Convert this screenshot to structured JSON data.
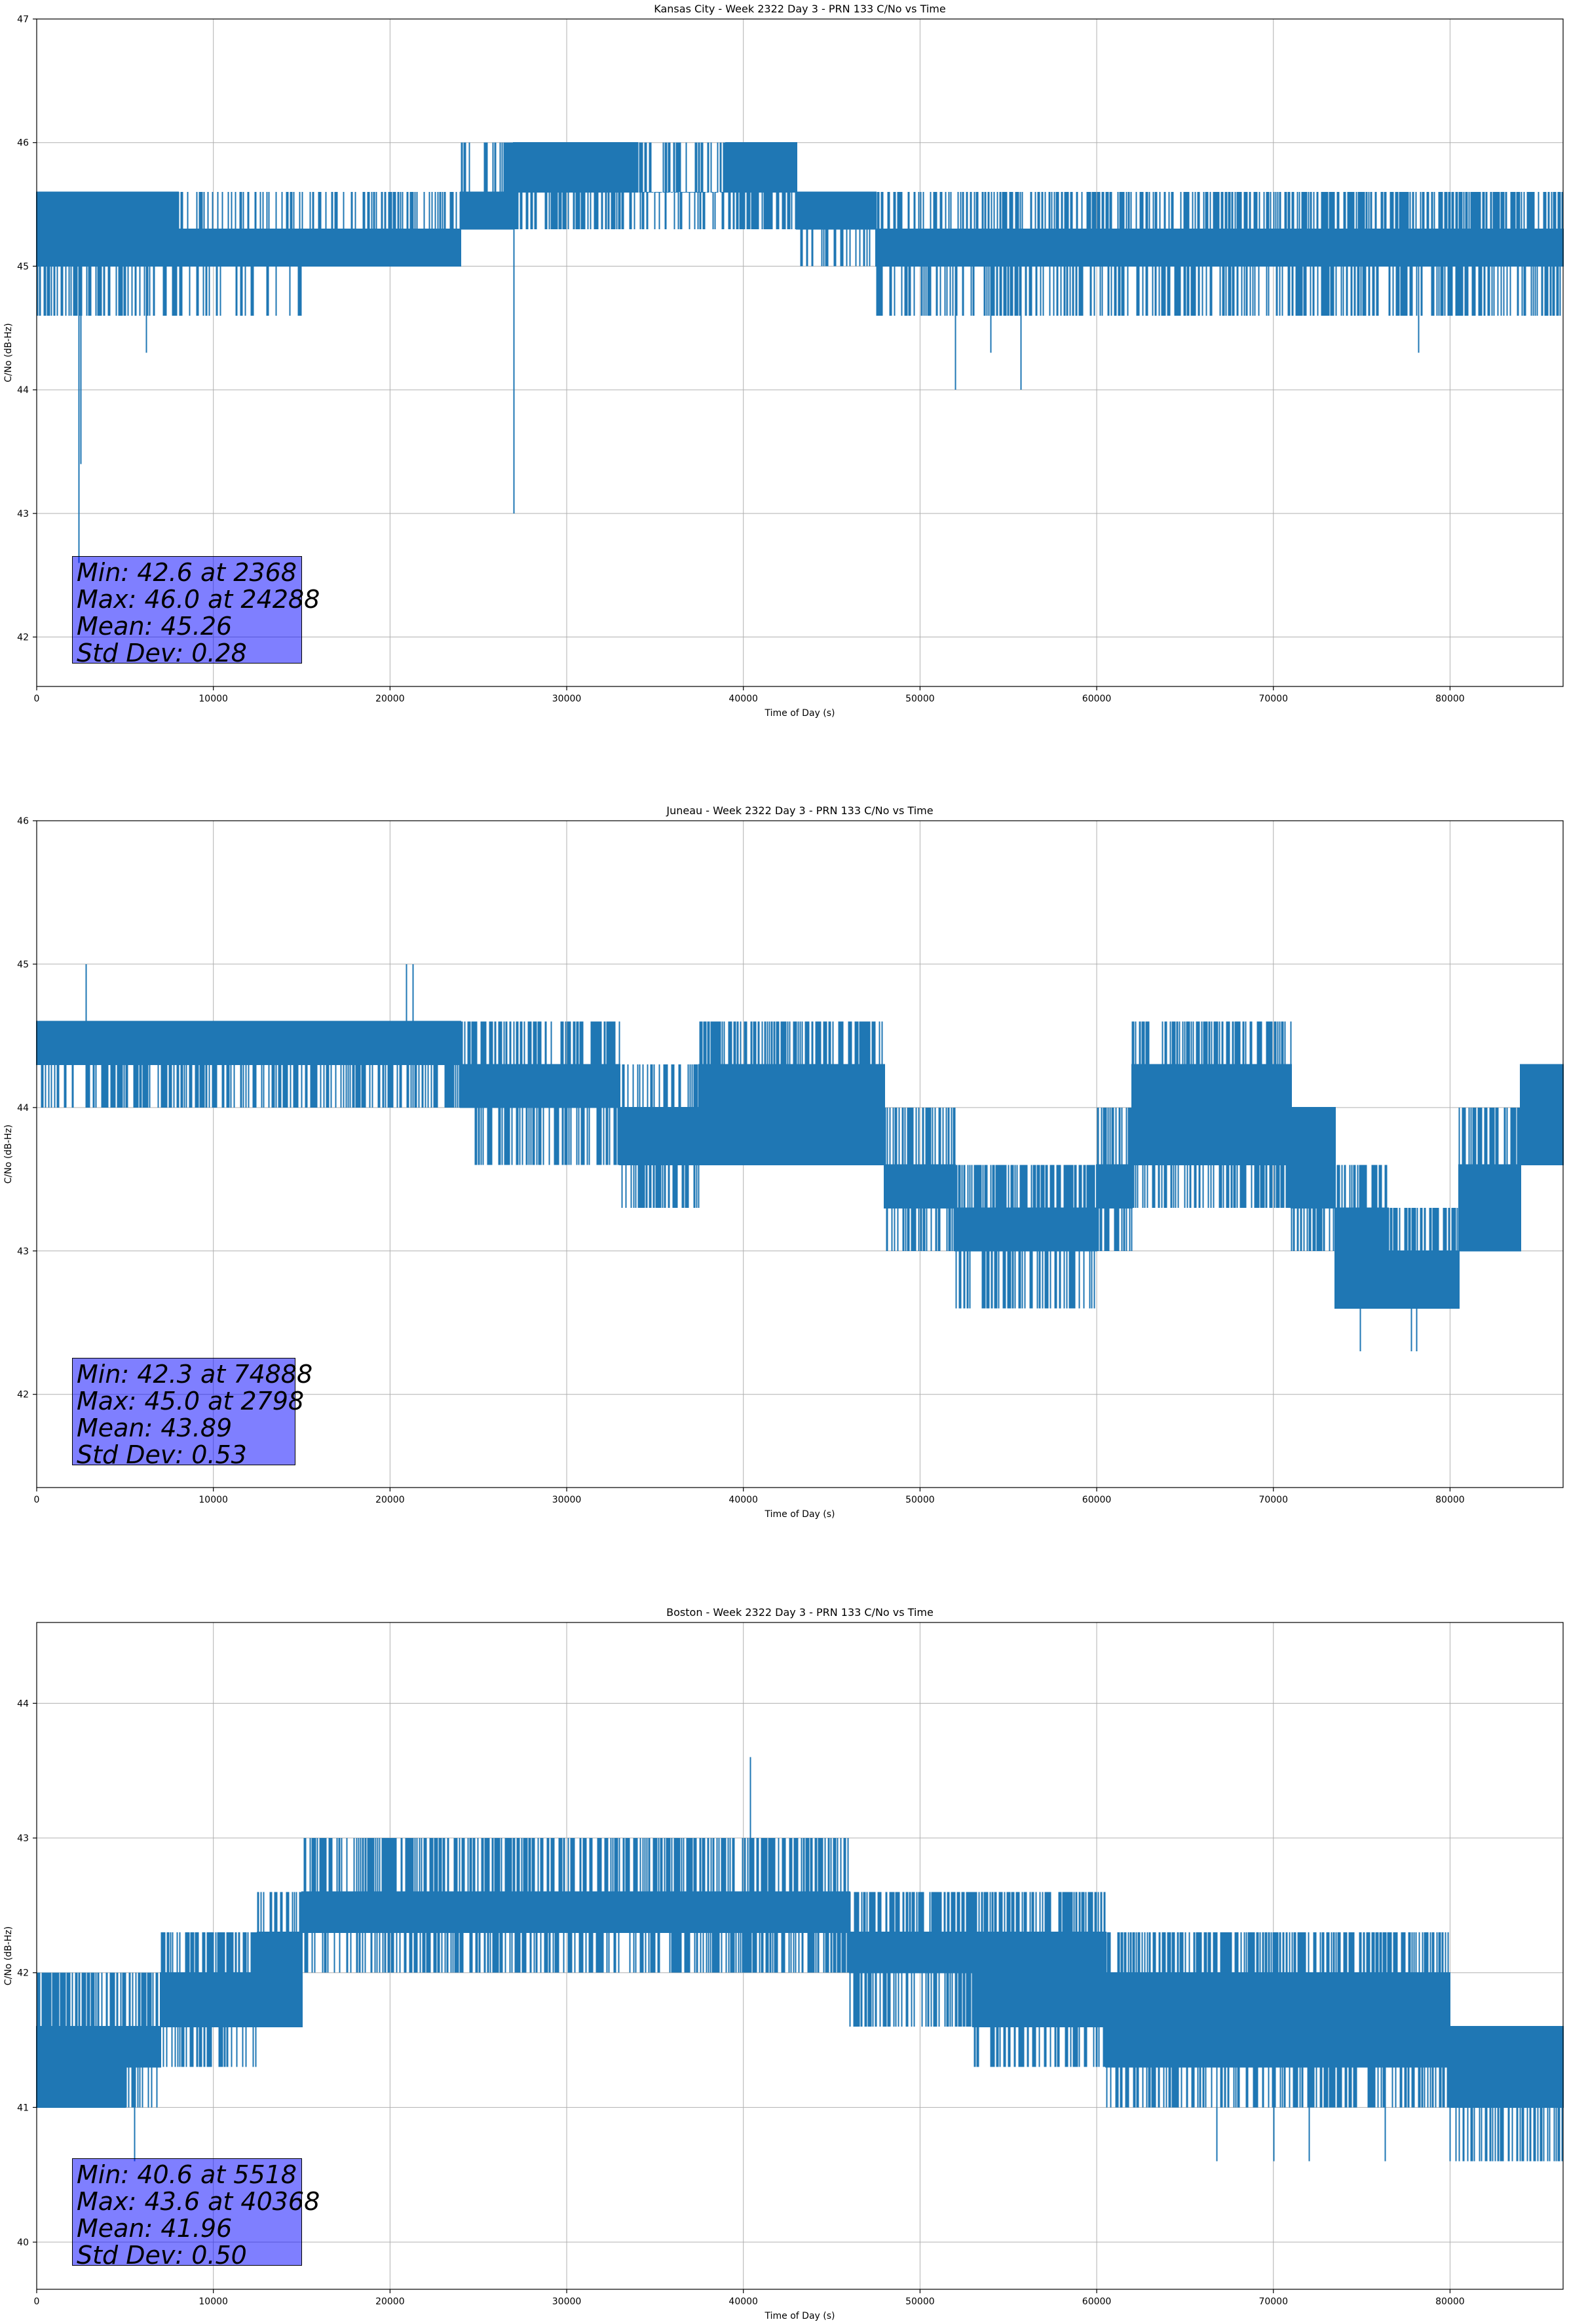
{
  "figure": {
    "xlabel": "Time of Day (s)",
    "ylabel": "C/No (dB-Hz)",
    "line_color": "#1f77b4"
  },
  "chart_data": [
    {
      "type": "line",
      "title": "Kansas City - Week 2322 Day 3 - PRN 133 C/No vs Time",
      "xlabel": "Time of Day (s)",
      "ylabel": "C/No (dB-Hz)",
      "xlim": [
        0,
        86400
      ],
      "ylim": [
        41.6,
        47.0
      ],
      "xticks": [
        0,
        10000,
        20000,
        30000,
        40000,
        50000,
        60000,
        70000,
        80000
      ],
      "yticks": [
        42,
        43,
        44,
        45,
        46,
        47
      ],
      "grid": true,
      "seed": 11,
      "segments": [
        {
          "x0": 0,
          "x1": 8000,
          "lo": 45.0,
          "hi": 45.6,
          "low_dip": 44.6,
          "high_spike": 45.6,
          "density": 0.8
        },
        {
          "x0": 8000,
          "x1": 15000,
          "lo": 45.0,
          "hi": 45.3,
          "low_dip": 44.6,
          "high_spike": 45.6,
          "density": 0.5
        },
        {
          "x0": 15000,
          "x1": 24000,
          "lo": 45.0,
          "hi": 45.3,
          "low_dip": 45.0,
          "high_spike": 45.6,
          "density": 0.6
        },
        {
          "x0": 24000,
          "x1": 27000,
          "lo": 45.3,
          "hi": 45.6,
          "low_dip": 45.3,
          "high_spike": 46.0,
          "density": 0.7
        },
        {
          "x0": 27000,
          "x1": 34000,
          "lo": 45.6,
          "hi": 46.0,
          "low_dip": 45.3,
          "high_spike": 46.0,
          "density": 0.9
        },
        {
          "x0": 34000,
          "x1": 39000,
          "lo": 45.6,
          "hi": 45.6,
          "low_dip": 45.3,
          "high_spike": 46.0,
          "density": 0.6
        },
        {
          "x0": 39000,
          "x1": 43000,
          "lo": 45.6,
          "hi": 46.0,
          "low_dip": 45.3,
          "high_spike": 46.0,
          "density": 0.9
        },
        {
          "x0": 43000,
          "x1": 47500,
          "lo": 45.3,
          "hi": 45.6,
          "low_dip": 45.0,
          "high_spike": 45.6,
          "density": 0.6
        },
        {
          "x0": 47500,
          "x1": 64000,
          "lo": 45.0,
          "hi": 45.3,
          "low_dip": 44.6,
          "high_spike": 45.6,
          "density": 0.7
        },
        {
          "x0": 64000,
          "x1": 86400,
          "lo": 45.0,
          "hi": 45.3,
          "low_dip": 44.6,
          "high_spike": 45.6,
          "density": 0.9
        }
      ],
      "spikes": [
        {
          "x": 2368,
          "y0": 45.0,
          "y1": 42.6
        },
        {
          "x": 2500,
          "y0": 45.0,
          "y1": 43.4
        },
        {
          "x": 6200,
          "y0": 45.0,
          "y1": 44.3
        },
        {
          "x": 27000,
          "y0": 45.6,
          "y1": 43.0
        },
        {
          "x": 52000,
          "y0": 45.0,
          "y1": 44.0
        },
        {
          "x": 55700,
          "y0": 45.0,
          "y1": 44.0
        },
        {
          "x": 54000,
          "y0": 45.0,
          "y1": 44.3
        },
        {
          "x": 78200,
          "y0": 45.0,
          "y1": 44.3
        }
      ],
      "stats": {
        "min": "Min: 42.6 at 2368",
        "max": "Max: 46.0 at 24288",
        "mean": "Mean: 45.26",
        "std": "Std Dev: 0.28"
      }
    },
    {
      "type": "line",
      "title": "Juneau - Week 2322 Day 3 - PRN 133 C/No vs Time",
      "xlabel": "Time of Day (s)",
      "ylabel": "C/No (dB-Hz)",
      "xlim": [
        0,
        86400
      ],
      "ylim": [
        41.35,
        46.0
      ],
      "xticks": [
        0,
        10000,
        20000,
        30000,
        40000,
        50000,
        60000,
        70000,
        80000
      ],
      "yticks": [
        42,
        43,
        44,
        45,
        46
      ],
      "grid": true,
      "seed": 23,
      "segments": [
        {
          "x0": 0,
          "x1": 24000,
          "lo": 44.3,
          "hi": 44.6,
          "low_dip": 44.0,
          "high_spike": 44.6,
          "density": 0.9
        },
        {
          "x0": 24000,
          "x1": 33000,
          "lo": 44.0,
          "hi": 44.3,
          "low_dip": 43.6,
          "high_spike": 44.6,
          "density": 0.8
        },
        {
          "x0": 33000,
          "x1": 37500,
          "lo": 43.6,
          "hi": 44.0,
          "low_dip": 43.3,
          "high_spike": 44.3,
          "density": 0.8
        },
        {
          "x0": 37500,
          "x1": 48000,
          "lo": 43.6,
          "hi": 44.3,
          "low_dip": 43.6,
          "high_spike": 44.6,
          "density": 0.9
        },
        {
          "x0": 48000,
          "x1": 52000,
          "lo": 43.3,
          "hi": 43.6,
          "low_dip": 43.0,
          "high_spike": 44.0,
          "density": 0.8
        },
        {
          "x0": 52000,
          "x1": 60000,
          "lo": 43.0,
          "hi": 43.3,
          "low_dip": 42.6,
          "high_spike": 43.6,
          "density": 0.9
        },
        {
          "x0": 60000,
          "x1": 62000,
          "lo": 43.3,
          "hi": 43.6,
          "low_dip": 43.0,
          "high_spike": 44.0,
          "density": 0.8
        },
        {
          "x0": 62000,
          "x1": 71000,
          "lo": 43.6,
          "hi": 44.3,
          "low_dip": 43.3,
          "high_spike": 44.6,
          "density": 0.9
        },
        {
          "x0": 71000,
          "x1": 73500,
          "lo": 43.3,
          "hi": 44.0,
          "low_dip": 43.0,
          "high_spike": 44.0,
          "density": 0.8
        },
        {
          "x0": 73500,
          "x1": 76500,
          "lo": 42.6,
          "hi": 43.3,
          "low_dip": 42.6,
          "high_spike": 43.6,
          "density": 0.9
        },
        {
          "x0": 76500,
          "x1": 80500,
          "lo": 42.6,
          "hi": 43.0,
          "low_dip": 42.6,
          "high_spike": 43.3,
          "density": 0.9
        },
        {
          "x0": 80500,
          "x1": 84000,
          "lo": 43.0,
          "hi": 43.6,
          "low_dip": 43.0,
          "high_spike": 44.0,
          "density": 0.9
        },
        {
          "x0": 84000,
          "x1": 86400,
          "lo": 43.6,
          "hi": 44.3,
          "low_dip": 43.6,
          "high_spike": 44.3,
          "density": 0.9
        }
      ],
      "spikes": [
        {
          "x": 2798,
          "y0": 44.6,
          "y1": 45.0
        },
        {
          "x": 20900,
          "y0": 44.6,
          "y1": 45.0
        },
        {
          "x": 21300,
          "y0": 44.6,
          "y1": 45.0
        },
        {
          "x": 74888,
          "y0": 42.6,
          "y1": 42.3
        },
        {
          "x": 77800,
          "y0": 42.6,
          "y1": 42.3
        },
        {
          "x": 78100,
          "y0": 42.6,
          "y1": 42.3
        }
      ],
      "stats": {
        "min": "Min: 42.3 at 74888",
        "max": "Max: 45.0 at 2798",
        "mean": "Mean: 43.89",
        "std": "Std Dev: 0.53"
      }
    },
    {
      "type": "line",
      "title": "Boston - Week 2322 Day 3 - PRN 133 C/No vs Time",
      "xlabel": "Time of Day (s)",
      "ylabel": "C/No (dB-Hz)",
      "xlim": [
        0,
        86400
      ],
      "ylim": [
        39.65,
        44.6
      ],
      "xticks": [
        0,
        10000,
        20000,
        30000,
        40000,
        50000,
        60000,
        70000,
        80000
      ],
      "yticks": [
        40,
        41,
        42,
        43,
        44
      ],
      "grid": true,
      "seed": 37,
      "segments": [
        {
          "x0": 0,
          "x1": 5000,
          "lo": 41.0,
          "hi": 41.6,
          "low_dip": 41.0,
          "high_spike": 42.0,
          "density": 0.9
        },
        {
          "x0": 5000,
          "x1": 7000,
          "lo": 41.3,
          "hi": 41.6,
          "low_dip": 41.0,
          "high_spike": 42.0,
          "density": 0.8
        },
        {
          "x0": 7000,
          "x1": 12500,
          "lo": 41.6,
          "hi": 42.0,
          "low_dip": 41.3,
          "high_spike": 42.3,
          "density": 0.9
        },
        {
          "x0": 12500,
          "x1": 15000,
          "lo": 41.6,
          "hi": 42.3,
          "low_dip": 41.6,
          "high_spike": 42.6,
          "density": 0.8
        },
        {
          "x0": 15000,
          "x1": 46000,
          "lo": 42.3,
          "hi": 42.6,
          "low_dip": 42.0,
          "high_spike": 43.0,
          "density": 0.9
        },
        {
          "x0": 46000,
          "x1": 53000,
          "lo": 42.0,
          "hi": 42.3,
          "low_dip": 41.6,
          "high_spike": 42.6,
          "density": 0.9
        },
        {
          "x0": 53000,
          "x1": 60500,
          "lo": 41.6,
          "hi": 42.3,
          "low_dip": 41.3,
          "high_spike": 42.6,
          "density": 0.9
        },
        {
          "x0": 60500,
          "x1": 80000,
          "lo": 41.3,
          "hi": 42.0,
          "low_dip": 41.0,
          "high_spike": 42.3,
          "density": 0.9
        },
        {
          "x0": 80000,
          "x1": 86400,
          "lo": 41.0,
          "hi": 41.6,
          "low_dip": 40.6,
          "high_spike": 41.6,
          "density": 0.9
        }
      ],
      "spikes": [
        {
          "x": 5518,
          "y0": 41.0,
          "y1": 40.6
        },
        {
          "x": 40368,
          "y0": 42.6,
          "y1": 43.6
        },
        {
          "x": 66800,
          "y0": 41.6,
          "y1": 40.6
        },
        {
          "x": 70000,
          "y0": 41.6,
          "y1": 40.6
        },
        {
          "x": 72000,
          "y0": 41.6,
          "y1": 40.6
        },
        {
          "x": 76300,
          "y0": 41.6,
          "y1": 40.6
        }
      ],
      "stats": {
        "min": "Min: 40.6 at 5518",
        "max": "Max: 43.6 at 40368",
        "mean": "Mean: 41.96",
        "std": "Std Dev: 0.50"
      }
    }
  ]
}
